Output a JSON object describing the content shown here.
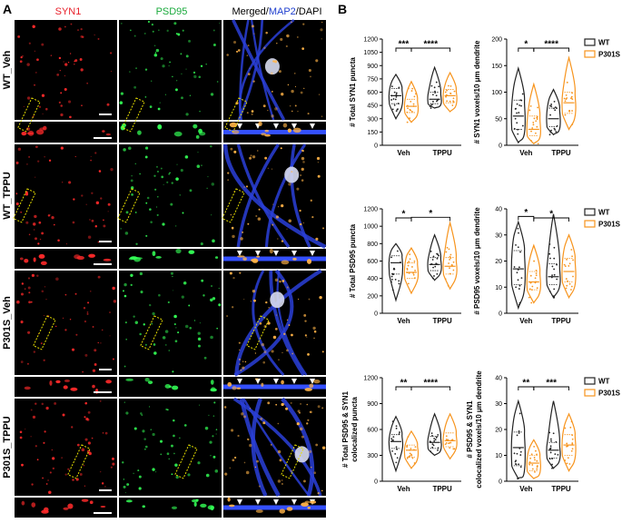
{
  "panel_a": {
    "label": "A",
    "columns": [
      {
        "label": "SYN1",
        "color": "#e8202a"
      },
      {
        "label": "PSD95",
        "color": "#1aaa3c"
      },
      {
        "label_parts": [
          {
            "text": "Merged/",
            "color": "#000000"
          },
          {
            "text": "MAP2",
            "color": "#1f3fcf"
          },
          {
            "text": "/DAPI",
            "color": "#000000"
          }
        ]
      }
    ],
    "rows": [
      "WT_Veh",
      "WT_TPPU",
      "P301S_Veh",
      "P301S_TPPU"
    ]
  },
  "panel_b": {
    "label": "B",
    "legend": [
      {
        "name": "WT",
        "color": "#222222"
      },
      {
        "name": "P301S",
        "color": "#f7941d"
      }
    ]
  },
  "chart_data": [
    {
      "type": "violin",
      "ylabel": "# Total SYN1 puncta",
      "ylim": [
        0,
        1200
      ],
      "yticks": [
        0,
        150,
        300,
        450,
        600,
        750,
        900,
        1050,
        1200
      ],
      "categories": [
        "Veh",
        "TPPU"
      ],
      "series": [
        {
          "name": "WT",
          "color": "#222222",
          "median": [
            560,
            520
          ],
          "q1": [
            470,
            470
          ],
          "q3": [
            640,
            600
          ],
          "min": [
            300,
            420
          ],
          "max": [
            800,
            880
          ]
        },
        {
          "name": "P301S",
          "color": "#f7941d",
          "median": [
            440,
            560
          ],
          "q1": [
            370,
            480
          ],
          "q3": [
            520,
            630
          ],
          "min": [
            260,
            380
          ],
          "max": [
            720,
            820
          ]
        }
      ],
      "significance": [
        {
          "label": "***",
          "from": "Veh-WT",
          "to": "Veh-P301S"
        },
        {
          "label": "****",
          "from": "Veh-P301S",
          "to": "TPPU-P301S"
        }
      ]
    },
    {
      "type": "violin",
      "ylabel": "# SYN1 voxels/10 μm dendrite",
      "ylim": [
        0,
        200
      ],
      "yticks": [
        0,
        50,
        100,
        150,
        200
      ],
      "categories": [
        "Veh",
        "TPPU"
      ],
      "series": [
        {
          "name": "WT",
          "color": "#222222",
          "median": [
            55,
            50
          ],
          "q1": [
            30,
            35
          ],
          "q3": [
            85,
            70
          ],
          "min": [
            5,
            20
          ],
          "max": [
            145,
            105
          ]
        },
        {
          "name": "P301S",
          "color": "#f7941d",
          "median": [
            30,
            80
          ],
          "q1": [
            18,
            60
          ],
          "q3": [
            55,
            100
          ],
          "min": [
            3,
            30
          ],
          "max": [
            115,
            165
          ]
        }
      ],
      "significance": [
        {
          "label": "*",
          "from": "Veh-WT",
          "to": "Veh-P301S"
        },
        {
          "label": "****",
          "from": "Veh-P301S",
          "to": "TPPU-P301S"
        }
      ]
    },
    {
      "type": "violin",
      "ylabel": "# Total PSD95 puncta",
      "ylim": [
        0,
        1200
      ],
      "yticks": [
        0,
        200,
        400,
        600,
        800,
        1000,
        1200
      ],
      "categories": [
        "Veh",
        "TPPU"
      ],
      "series": [
        {
          "name": "WT",
          "color": "#222222",
          "median": [
            580,
            560
          ],
          "q1": [
            450,
            490
          ],
          "q3": [
            660,
            640
          ],
          "min": [
            150,
            380
          ],
          "max": [
            800,
            900
          ]
        },
        {
          "name": "P301S",
          "color": "#f7941d",
          "median": [
            470,
            540
          ],
          "q1": [
            400,
            450
          ],
          "q3": [
            580,
            640
          ],
          "min": [
            230,
            280
          ],
          "max": [
            750,
            1040
          ]
        }
      ],
      "significance": [
        {
          "label": "*",
          "from": "Veh-WT",
          "to": "Veh-P301S"
        },
        {
          "label": "*",
          "from": "Veh-P301S",
          "to": "TPPU-P301S"
        }
      ]
    },
    {
      "type": "violin",
      "ylabel": "# PSD95 voxels/10 μm dendrite",
      "ylim": [
        0,
        40
      ],
      "yticks": [
        0,
        10,
        20,
        30,
        40
      ],
      "categories": [
        "Veh",
        "TPPU"
      ],
      "series": [
        {
          "name": "WT",
          "color": "#222222",
          "median": [
            17,
            14
          ],
          "q1": [
            11,
            11
          ],
          "q3": [
            24,
            19
          ],
          "min": [
            2,
            6
          ],
          "max": [
            35,
            38
          ]
        },
        {
          "name": "P301S",
          "color": "#f7941d",
          "median": [
            12,
            16
          ],
          "q1": [
            9,
            12
          ],
          "q3": [
            16,
            21
          ],
          "min": [
            4,
            6
          ],
          "max": [
            26,
            30
          ]
        }
      ],
      "significance": [
        {
          "label": "*",
          "from": "Veh-WT",
          "to": "Veh-P301S"
        },
        {
          "label": "*",
          "from": "Veh-P301S",
          "to": "TPPU-P301S"
        }
      ]
    },
    {
      "type": "violin",
      "ylabel_lines": [
        "# Total PSD95 & SYN1",
        "colocalized puncta"
      ],
      "ylim": [
        0,
        1200
      ],
      "yticks": [
        0,
        300,
        600,
        900,
        1200
      ],
      "categories": [
        "Veh",
        "TPPU"
      ],
      "series": [
        {
          "name": "WT",
          "color": "#222222",
          "median": [
            460,
            450
          ],
          "q1": [
            380,
            380
          ],
          "q3": [
            540,
            520
          ],
          "min": [
            120,
            300
          ],
          "max": [
            750,
            780
          ]
        },
        {
          "name": "P301S",
          "color": "#f7941d",
          "median": [
            360,
            470
          ],
          "q1": [
            280,
            400
          ],
          "q3": [
            420,
            560
          ],
          "min": [
            150,
            260
          ],
          "max": [
            580,
            780
          ]
        }
      ],
      "significance": [
        {
          "label": "**",
          "from": "Veh-WT",
          "to": "Veh-P301S"
        },
        {
          "label": "****",
          "from": "Veh-P301S",
          "to": "TPPU-P301S"
        }
      ]
    },
    {
      "type": "violin",
      "ylabel_lines": [
        "# PSD95 & SYN1",
        "colocalized voxels/10 μm dendrite"
      ],
      "ylim": [
        0,
        40
      ],
      "yticks": [
        0,
        10,
        20,
        30,
        40
      ],
      "categories": [
        "Veh",
        "TPPU"
      ],
      "series": [
        {
          "name": "WT",
          "color": "#222222",
          "median": [
            13,
            12
          ],
          "q1": [
            6,
            9
          ],
          "q3": [
            19,
            15
          ],
          "min": [
            1,
            5
          ],
          "max": [
            31,
            31
          ]
        },
        {
          "name": "P301S",
          "color": "#f7941d",
          "median": [
            7,
            14
          ],
          "q1": [
            4,
            10
          ],
          "q3": [
            10,
            18
          ],
          "min": [
            1,
            4
          ],
          "max": [
            16,
            26
          ]
        }
      ],
      "significance": [
        {
          "label": "**",
          "from": "Veh-WT",
          "to": "Veh-P301S"
        },
        {
          "label": "***",
          "from": "Veh-P301S",
          "to": "TPPU-P301S"
        }
      ]
    }
  ]
}
